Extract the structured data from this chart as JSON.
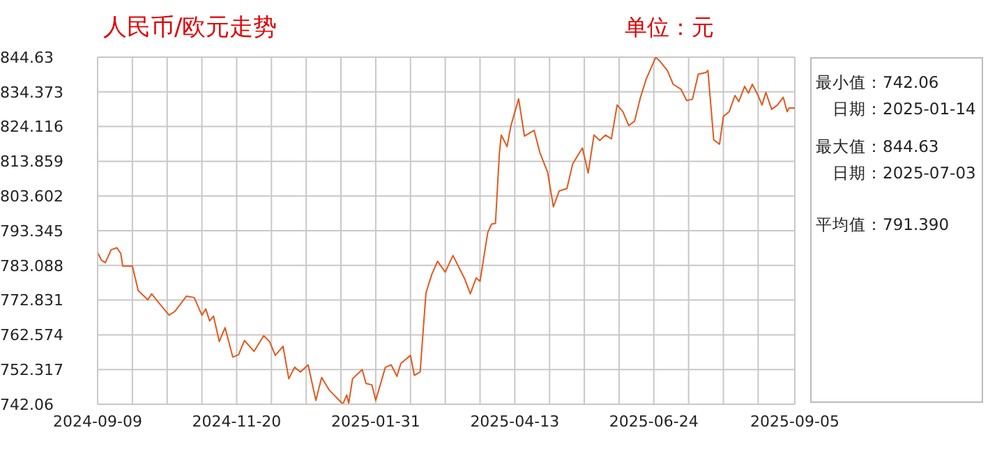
{
  "chart_data": {
    "type": "line",
    "title": "人民币/欧元走势",
    "subtitle": "单位：元",
    "annotations": [
      "最小值：742.06",
      "日期：2025-01-14",
      "最大值：844.63",
      "日期：2025-07-03",
      "平均值：791.390"
    ],
    "x": [
      "2024-09-09",
      "2024-09-11",
      "2024-09-13",
      "2024-09-16",
      "2024-09-19",
      "2024-09-21",
      "2024-09-22",
      "2024-09-27",
      "2024-09-30",
      "2024-10-05",
      "2024-10-07",
      "2024-10-10",
      "2024-10-16",
      "2024-10-19",
      "2024-10-25",
      "2024-10-29",
      "2024-11-02",
      "2024-11-04",
      "2024-11-06",
      "2024-11-08",
      "2024-11-11",
      "2024-11-14",
      "2024-11-18",
      "2024-11-21",
      "2024-11-24",
      "2024-11-29",
      "2024-12-04",
      "2024-12-07",
      "2024-12-10",
      "2024-12-14",
      "2024-12-17",
      "2024-12-20",
      "2024-12-23",
      "2024-12-27",
      "2024-12-31",
      "2025-01-03",
      "2025-01-07",
      "2025-01-14",
      "2025-01-16",
      "2025-01-17",
      "2025-01-19",
      "2025-01-24",
      "2025-01-26",
      "2025-01-29",
      "2025-01-31",
      "2025-02-05",
      "2025-02-08",
      "2025-02-11",
      "2025-02-13",
      "2025-02-18",
      "2025-02-20",
      "2025-02-23",
      "2025-02-26",
      "2025-03-01",
      "2025-03-04",
      "2025-03-08",
      "2025-03-12",
      "2025-03-18",
      "2025-03-21",
      "2025-03-24",
      "2025-03-26",
      "2025-03-30",
      "2025-04-01",
      "2025-04-03",
      "2025-04-05",
      "2025-04-06",
      "2025-04-09",
      "2025-04-11",
      "2025-04-15",
      "2025-04-18",
      "2025-04-23",
      "2025-04-26",
      "2025-04-30",
      "2025-05-03",
      "2025-05-06",
      "2025-05-10",
      "2025-05-13",
      "2025-05-18",
      "2025-05-21",
      "2025-05-24",
      "2025-05-27",
      "2025-05-30",
      "2025-06-02",
      "2025-06-05",
      "2025-06-08",
      "2025-06-11",
      "2025-06-14",
      "2025-06-17",
      "2025-06-20",
      "2025-06-25",
      "2025-06-27",
      "2025-07-01",
      "2025-07-04",
      "2025-07-08",
      "2025-07-11",
      "2025-07-14",
      "2025-07-17",
      "2025-07-21",
      "2025-07-22",
      "2025-07-25",
      "2025-07-28",
      "2025-07-30",
      "2025-08-02",
      "2025-08-05",
      "2025-08-07",
      "2025-08-10",
      "2025-08-12",
      "2025-08-14",
      "2025-08-17",
      "2025-08-19",
      "2025-08-21",
      "2025-08-24",
      "2025-08-27",
      "2025-08-30",
      "2025-09-01",
      "2025-09-02",
      "2025-09-05"
    ],
    "series": [
      {
        "color": "#e05a1e",
        "values": [
          786.9,
          784.6,
          783.9,
          787.7,
          788.3,
          786.6,
          782.9,
          782.9,
          775.7,
          772.9,
          774.7,
          772.5,
          768.4,
          769.5,
          774.0,
          773.6,
          768.4,
          770.2,
          766.7,
          768.1,
          760.6,
          764.7,
          756.0,
          756.7,
          760.9,
          757.7,
          762.3,
          760.6,
          756.5,
          759.2,
          749.6,
          753.0,
          751.6,
          753.7,
          743.2,
          750.0,
          746.2,
          742.1,
          744.8,
          742.3,
          749.6,
          752.3,
          748.2,
          747.8,
          743.2,
          753.0,
          753.7,
          750.3,
          754.1,
          756.5,
          750.6,
          751.6,
          774.9,
          780.4,
          784.3,
          781.1,
          786.0,
          779.2,
          774.7,
          779.4,
          778.4,
          792.8,
          795.3,
          795.5,
          816.1,
          821.6,
          818.2,
          824.4,
          832.3,
          821.3,
          823.0,
          816.4,
          810.6,
          800.4,
          805.1,
          805.8,
          813.1,
          817.8,
          810.4,
          821.6,
          820.0,
          821.6,
          820.5,
          830.5,
          828.5,
          824.4,
          825.7,
          832.6,
          838.1,
          844.6,
          843.5,
          840.7,
          836.6,
          835.2,
          831.8,
          832.2,
          839.6,
          840.1,
          840.7,
          820.2,
          818.9,
          827.1,
          828.5,
          833.3,
          831.5,
          836.0,
          834.0,
          836.6,
          833.3,
          830.5,
          834.2,
          829.2,
          830.5,
          832.8,
          828.5,
          829.6,
          829.6
        ]
      }
    ],
    "xlim": [
      "2024-09-09",
      "2025-09-05"
    ],
    "xticks": [
      "2024-09-09",
      {
        "value": "2024-09-27",
        "label": null
      },
      {
        "value": "2024-10-15",
        "label": null
      },
      {
        "value": "2024-11-02",
        "label": null
      },
      "2024-11-20",
      {
        "value": "2024-12-08",
        "label": null
      },
      {
        "value": "2024-12-26",
        "label": null
      },
      {
        "value": "2025-01-13",
        "label": null
      },
      "2025-01-31",
      {
        "value": "2025-02-18",
        "label": null
      },
      {
        "value": "2025-03-08",
        "label": null
      },
      {
        "value": "2025-03-26",
        "label": null
      },
      "2025-04-13",
      {
        "value": "2025-05-01",
        "label": null
      },
      {
        "value": "2025-05-19",
        "label": null
      },
      {
        "value": "2025-06-06",
        "label": null
      },
      "2025-06-24",
      {
        "value": "2025-07-12",
        "label": null
      },
      {
        "value": "2025-07-30",
        "label": null
      },
      {
        "value": "2025-08-17",
        "label": null
      },
      "2025-09-05"
    ],
    "ylim": [
      742.06,
      844.63
    ],
    "yticks": [
      742.06,
      752.317,
      762.574,
      772.831,
      783.088,
      793.345,
      803.602,
      813.859,
      824.116,
      834.373,
      844.63
    ],
    "grid": true
  }
}
